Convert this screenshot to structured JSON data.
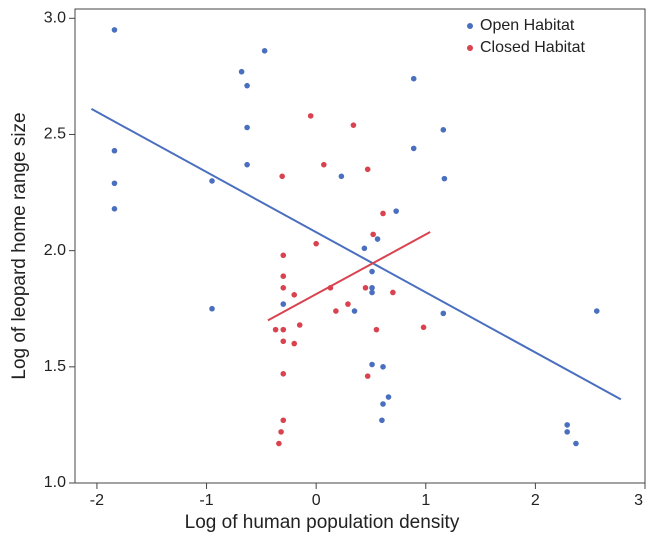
{
  "chart_data": {
    "type": "scatter",
    "xlabel": "Log of human population density",
    "ylabel": "Log of leopard home range size",
    "xlim": [
      -2.2,
      3.0
    ],
    "ylim": [
      1.0,
      3.04
    ],
    "xticks": [
      -2,
      -1,
      0,
      1,
      2,
      3
    ],
    "yticks": [
      {
        "value": 1,
        "label": "1.0"
      },
      1.5,
      {
        "value": 2,
        "label": "2.0"
      },
      2.5,
      {
        "value": 3,
        "label": "3.0"
      }
    ],
    "legend": "upper right",
    "series": [
      {
        "name": "Open Habitat",
        "color": "#4a6fbf",
        "x": [
          -1.84,
          -1.84,
          -1.84,
          -1.84,
          -0.95,
          -0.95,
          -0.47,
          -0.68,
          -0.63,
          -0.63,
          -0.63,
          0.23,
          0.89,
          0.89,
          1.16,
          1.17,
          0.73,
          0.56,
          0.44,
          0.51,
          0.51,
          0.51,
          0.35,
          1.16,
          -0.3,
          2.56,
          0.51,
          0.61,
          0.66,
          0.61,
          0.6,
          2.29,
          2.29,
          2.37
        ],
        "values": [
          2.95,
          2.43,
          2.29,
          2.18,
          2.3,
          1.75,
          2.86,
          2.77,
          2.71,
          2.53,
          2.37,
          2.32,
          2.74,
          2.44,
          2.52,
          2.31,
          2.17,
          2.05,
          2.01,
          1.91,
          1.84,
          1.82,
          1.74,
          1.73,
          1.77,
          1.74,
          1.51,
          1.5,
          1.37,
          1.34,
          1.27,
          1.25,
          1.22,
          1.17
        ],
        "fit": {
          "x": [
            -2.05,
            2.78
          ],
          "y": [
            2.61,
            1.36
          ]
        }
      },
      {
        "name": "Closed Habitat",
        "color": "#d9434f",
        "x": [
          -0.05,
          0.34,
          0.07,
          0.47,
          -0.31,
          0.61,
          0,
          0.52,
          -0.3,
          -0.3,
          -0.2,
          -0.3,
          0.13,
          0.29,
          0.18,
          0.45,
          0.7,
          -0.15,
          -0.37,
          -0.3,
          0.55,
          0.98,
          -0.3,
          -0.2,
          -0.3,
          0.47,
          -0.3,
          -0.32,
          -0.34
        ],
        "values": [
          2.58,
          2.54,
          2.37,
          2.35,
          2.32,
          2.16,
          2.03,
          2.07,
          1.98,
          1.89,
          1.81,
          1.84,
          1.84,
          1.77,
          1.74,
          1.84,
          1.82,
          1.68,
          1.66,
          1.66,
          1.66,
          1.67,
          1.61,
          1.6,
          1.47,
          1.46,
          1.27,
          1.22,
          1.17
        ],
        "fit": {
          "x": [
            -0.44,
            1.04
          ],
          "y": [
            1.7,
            2.08
          ]
        }
      }
    ]
  }
}
